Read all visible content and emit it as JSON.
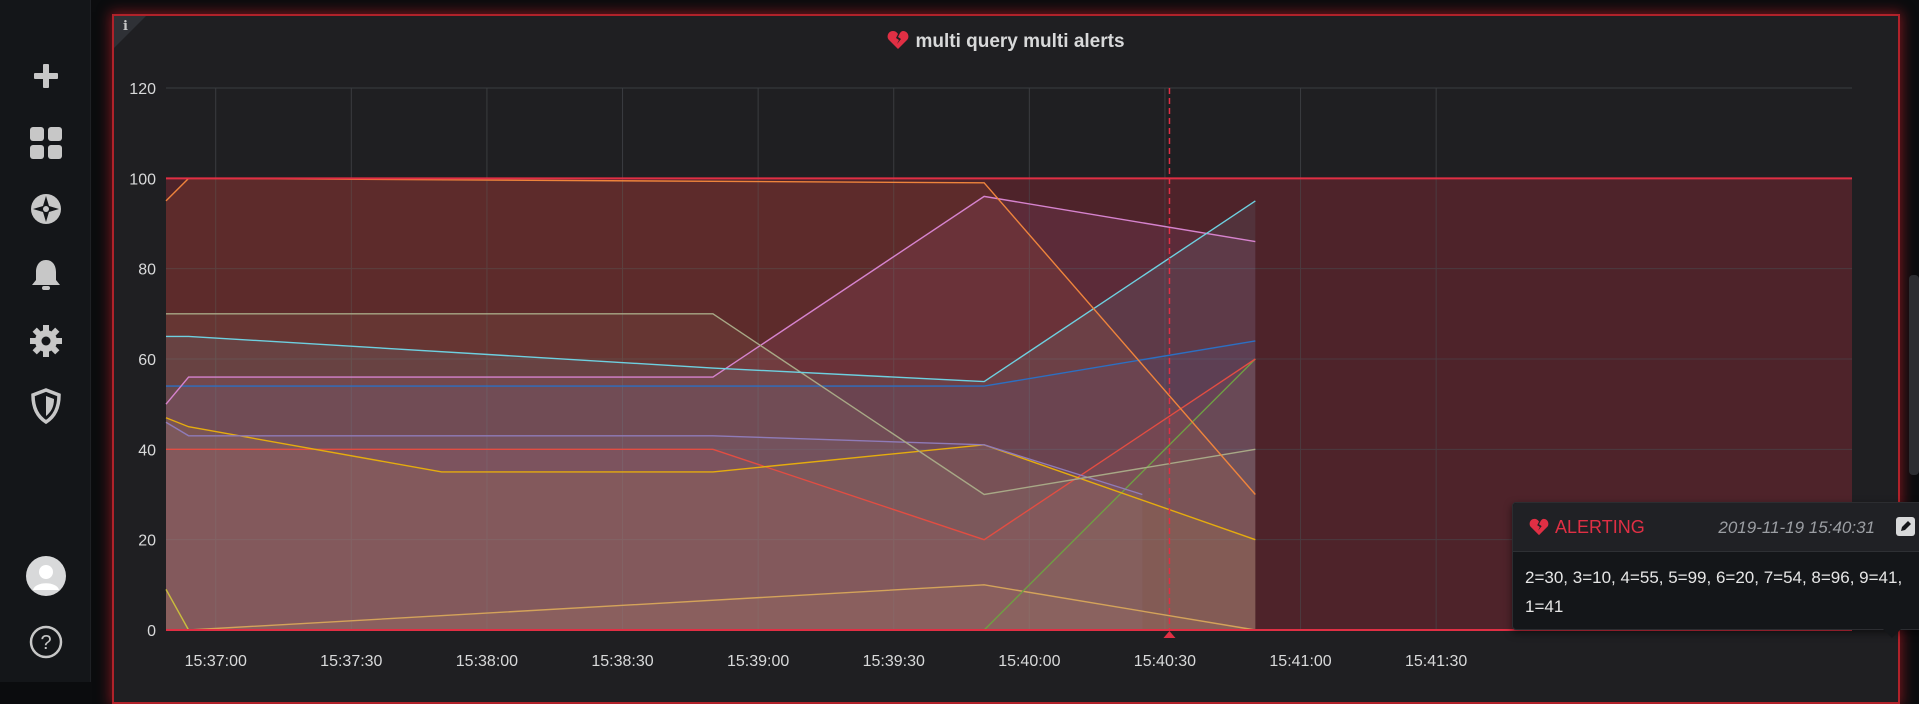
{
  "panel": {
    "title": "multi query multi alerts",
    "info_label": "i"
  },
  "nav": [
    {
      "name": "create-icon"
    },
    {
      "name": "dashboards-icon"
    },
    {
      "name": "explore-icon"
    },
    {
      "name": "alerting-icon"
    },
    {
      "name": "configuration-icon"
    },
    {
      "name": "server-admin-icon"
    },
    {
      "name": "user-avatar-icon"
    },
    {
      "name": "help-icon"
    }
  ],
  "colors": {
    "alert": "#e02f44",
    "panel_border": "#b0222a",
    "alert_fill": "rgba(224,47,68,0.16)"
  },
  "tooltip": {
    "state": "ALERTING",
    "time": "2019-11-19 15:40:31",
    "text": "2=30, 3=10, 4=55, 5=99, 6=20, 7=54, 8=96, 9=41, 1=41"
  },
  "chart_data": {
    "type": "area",
    "ylim": [
      0,
      120
    ],
    "yticks": [
      0,
      20,
      40,
      60,
      80,
      100,
      120
    ],
    "xlim_seconds": [
      -11,
      362
    ],
    "xticks": [
      {
        "t": 0,
        "label": "15:37:00"
      },
      {
        "t": 30,
        "label": "15:37:30"
      },
      {
        "t": 60,
        "label": "15:38:00"
      },
      {
        "t": 90,
        "label": "15:38:30"
      },
      {
        "t": 120,
        "label": "15:39:00"
      },
      {
        "t": 150,
        "label": "15:39:30"
      },
      {
        "t": 180,
        "label": "15:40:00"
      },
      {
        "t": 210,
        "label": "15:40:30"
      },
      {
        "t": 240,
        "label": "15:41:00"
      },
      {
        "t": 270,
        "label": "15:41:30"
      }
    ],
    "threshold": 100,
    "annotation_t": 211,
    "series": [
      {
        "color": "#c9bd3d",
        "points": [
          [
            -11,
            9
          ],
          [
            -6,
            0
          ],
          [
            170,
            0
          ],
          [
            240,
            0
          ]
        ]
      },
      {
        "color": "#d4a35a",
        "points": [
          [
            -11,
            0
          ],
          [
            -6,
            0
          ],
          [
            170,
            10
          ],
          [
            230,
            0
          ]
        ]
      },
      {
        "color": "#6f9e43",
        "points": [
          [
            -11,
            0
          ],
          [
            170,
            0
          ],
          [
            230,
            60
          ]
        ]
      },
      {
        "color": "#e24d42",
        "points": [
          [
            -11,
            40
          ],
          [
            110,
            40
          ],
          [
            170,
            20
          ],
          [
            230,
            60
          ]
        ]
      },
      {
        "color": "#e5ac0e",
        "points": [
          [
            -11,
            47
          ],
          [
            -6,
            45
          ],
          [
            50,
            35
          ],
          [
            110,
            35
          ],
          [
            170,
            41
          ],
          [
            230,
            20
          ]
        ]
      },
      {
        "color": "#8f7bb8",
        "points": [
          [
            -11,
            46
          ],
          [
            -6,
            43
          ],
          [
            110,
            43
          ],
          [
            170,
            41
          ],
          [
            205,
            30
          ]
        ]
      },
      {
        "color": "#2c6fc2",
        "points": [
          [
            -11,
            54
          ],
          [
            170,
            54
          ],
          [
            230,
            64
          ]
        ]
      },
      {
        "color": "#d683ce",
        "points": [
          [
            -11,
            50
          ],
          [
            -6,
            56
          ],
          [
            110,
            56
          ],
          [
            170,
            96
          ],
          [
            230,
            86
          ]
        ]
      },
      {
        "color": "#a8a886",
        "points": [
          [
            -11,
            70
          ],
          [
            110,
            70
          ],
          [
            170,
            30
          ],
          [
            230,
            40
          ]
        ]
      },
      {
        "color": "#6ed0e0",
        "points": [
          [
            -11,
            65
          ],
          [
            -6,
            65
          ],
          [
            110,
            58
          ],
          [
            170,
            55
          ],
          [
            230,
            95
          ]
        ]
      },
      {
        "color": "#ef843c",
        "points": [
          [
            -11,
            95
          ],
          [
            -6,
            100
          ],
          [
            170,
            99
          ],
          [
            230,
            30
          ]
        ]
      },
      {
        "color": "#e02f44",
        "points": [
          [
            -11,
            100
          ],
          [
            362,
            100
          ]
        ]
      }
    ]
  }
}
